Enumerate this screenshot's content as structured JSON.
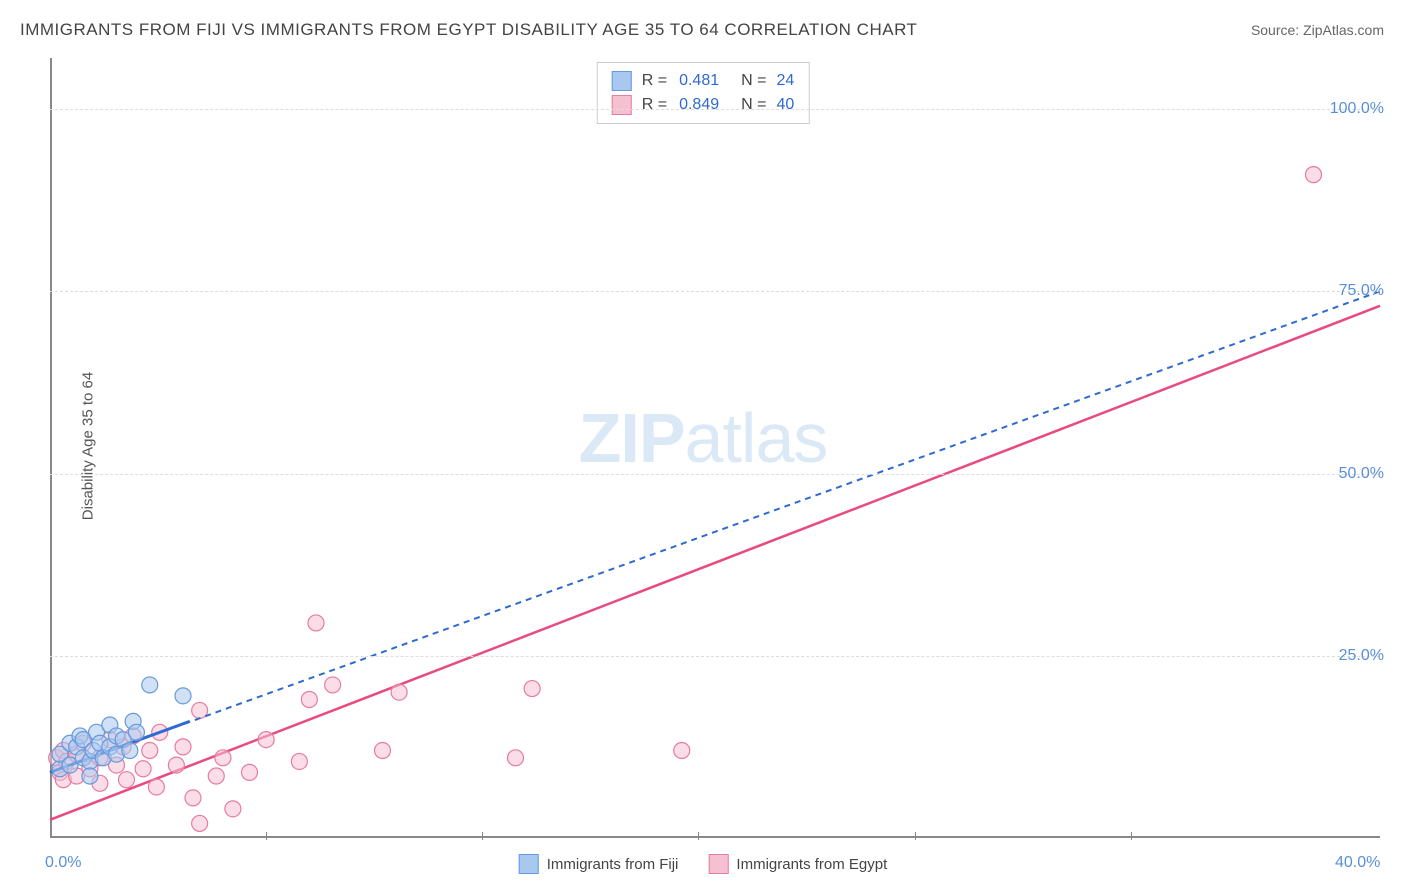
{
  "title": "IMMIGRANTS FROM FIJI VS IMMIGRANTS FROM EGYPT DISABILITY AGE 35 TO 64 CORRELATION CHART",
  "source": "Source: ZipAtlas.com",
  "ylabel": "Disability Age 35 to 64",
  "watermark": {
    "part1": "ZIP",
    "part2": "atlas"
  },
  "chart": {
    "type": "scatter",
    "xlim": [
      0,
      40
    ],
    "ylim": [
      0,
      107
    ],
    "yticks": [
      25,
      50,
      75,
      100
    ],
    "ytick_labels": [
      "25.0%",
      "50.0%",
      "75.0%",
      "100.0%"
    ],
    "x_left_label": "0.0%",
    "x_right_label": "40.0%",
    "xtick_positions": [
      6.5,
      13,
      19.5,
      26,
      32.5
    ],
    "background_color": "#ffffff",
    "grid_color": "#dddddd",
    "axis_color": "#888888",
    "marker_radius": 8,
    "marker_opacity": 0.55,
    "series": [
      {
        "name": "Immigrants from Fiji",
        "color_fill": "#a9c8ef",
        "color_stroke": "#6699dd",
        "line_color": "#2e6ad1",
        "line_dash": "6 5",
        "line_width": 2,
        "r": "0.481",
        "n": "24",
        "regression": {
          "x1": 0,
          "y1": 9,
          "x2": 40,
          "y2": 75
        },
        "solid_segment": {
          "x1": 0,
          "y1": 9,
          "x2": 4.2,
          "y2": 16
        },
        "points": [
          [
            0.3,
            9.5
          ],
          [
            0.3,
            11.5
          ],
          [
            0.6,
            13.0
          ],
          [
            0.6,
            10.0
          ],
          [
            0.8,
            12.5
          ],
          [
            0.9,
            14.0
          ],
          [
            1.0,
            11.0
          ],
          [
            1.0,
            13.5
          ],
          [
            1.2,
            10.5
          ],
          [
            1.3,
            12.0
          ],
          [
            1.4,
            14.5
          ],
          [
            1.5,
            13.0
          ],
          [
            1.6,
            11.0
          ],
          [
            1.8,
            12.5
          ],
          [
            1.8,
            15.5
          ],
          [
            2.0,
            14.0
          ],
          [
            2.0,
            11.5
          ],
          [
            2.2,
            13.5
          ],
          [
            2.4,
            12.0
          ],
          [
            2.5,
            16.0
          ],
          [
            2.6,
            14.5
          ],
          [
            3.0,
            21.0
          ],
          [
            1.2,
            8.5
          ],
          [
            4.0,
            19.5
          ]
        ]
      },
      {
        "name": "Immigrants from Egypt",
        "color_fill": "#f5c1d1",
        "color_stroke": "#e77ba3",
        "line_color": "#e94b7e",
        "line_dash": "none",
        "line_width": 2.5,
        "r": "0.849",
        "n": "40",
        "regression": {
          "x1": 0,
          "y1": 2.5,
          "x2": 40,
          "y2": 73
        },
        "points": [
          [
            0.2,
            11.0
          ],
          [
            0.3,
            9.0
          ],
          [
            0.4,
            12.0
          ],
          [
            0.4,
            8.0
          ],
          [
            0.5,
            10.5
          ],
          [
            0.8,
            11.5
          ],
          [
            0.8,
            8.5
          ],
          [
            1.0,
            13.0
          ],
          [
            1.2,
            9.5
          ],
          [
            1.5,
            11.0
          ],
          [
            1.5,
            7.5
          ],
          [
            1.8,
            13.5
          ],
          [
            2.0,
            10.0
          ],
          [
            2.2,
            12.5
          ],
          [
            2.3,
            8.0
          ],
          [
            2.5,
            14.0
          ],
          [
            2.8,
            9.5
          ],
          [
            3.0,
            12.0
          ],
          [
            3.2,
            7.0
          ],
          [
            3.3,
            14.5
          ],
          [
            3.8,
            10.0
          ],
          [
            4.0,
            12.5
          ],
          [
            4.3,
            5.5
          ],
          [
            4.5,
            17.5
          ],
          [
            4.5,
            2.0
          ],
          [
            5.0,
            8.5
          ],
          [
            5.2,
            11.0
          ],
          [
            6.0,
            9.0
          ],
          [
            6.5,
            13.5
          ],
          [
            5.5,
            4.0
          ],
          [
            7.5,
            10.5
          ],
          [
            7.8,
            19.0
          ],
          [
            8.0,
            29.5
          ],
          [
            8.5,
            21.0
          ],
          [
            10.0,
            12.0
          ],
          [
            10.5,
            20.0
          ],
          [
            14.5,
            20.5
          ],
          [
            14.0,
            11.0
          ],
          [
            19.0,
            12.0
          ],
          [
            38.0,
            91.0
          ]
        ]
      }
    ]
  },
  "legend_top": {
    "r_label": "R  =",
    "n_label": "N  ="
  },
  "legend_bottom": [
    {
      "label": "Immigrants from Fiji",
      "fill": "#a9c8ef",
      "stroke": "#6699dd"
    },
    {
      "label": "Immigrants from Egypt",
      "fill": "#f5c1d1",
      "stroke": "#e77ba3"
    }
  ]
}
